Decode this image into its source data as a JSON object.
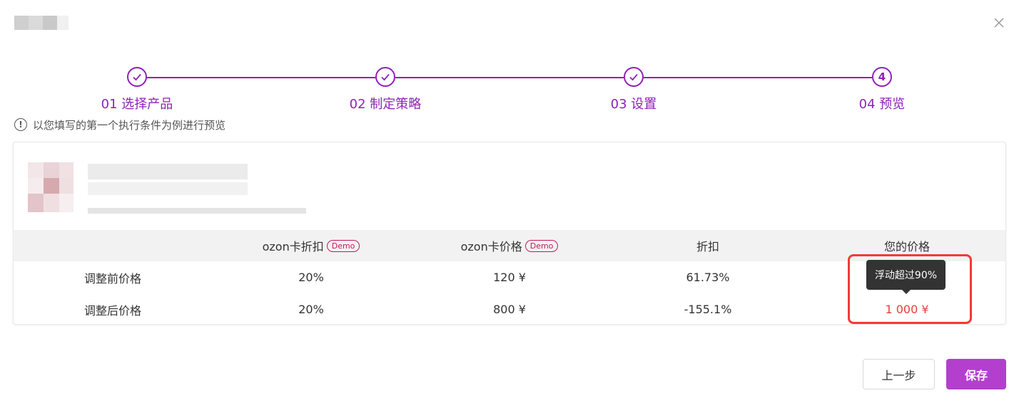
{
  "steps": [
    {
      "label": "01 选择产品",
      "state": "done"
    },
    {
      "label": "02 制定策略",
      "state": "done"
    },
    {
      "label": "03 设置",
      "state": "done"
    },
    {
      "label": "04 预览",
      "number": "4",
      "state": "current"
    }
  ],
  "notice": {
    "icon": "info-icon",
    "text": "以您填写的第一个执行条件为例进行预览"
  },
  "table": {
    "headers": [
      "",
      "ozon卡折扣",
      "ozon卡价格",
      "折扣",
      "您的价格"
    ],
    "demo_badge": "Demo",
    "rows": [
      {
        "label": "调整前价格",
        "cells": [
          "20%",
          "120 ¥",
          "61.73%",
          ""
        ]
      },
      {
        "label": "调整后价格",
        "cells": [
          "20%",
          "800 ¥",
          "-155.1%",
          "1 000 ¥"
        ]
      }
    ]
  },
  "tooltip": "浮动超过90%",
  "footer": {
    "prev_label": "上一步",
    "save_label": "保存"
  },
  "colors": {
    "accent": "#8e22b7",
    "save": "#b43fcf",
    "warn": "#e8403b",
    "highlight": "#ef3b37"
  }
}
